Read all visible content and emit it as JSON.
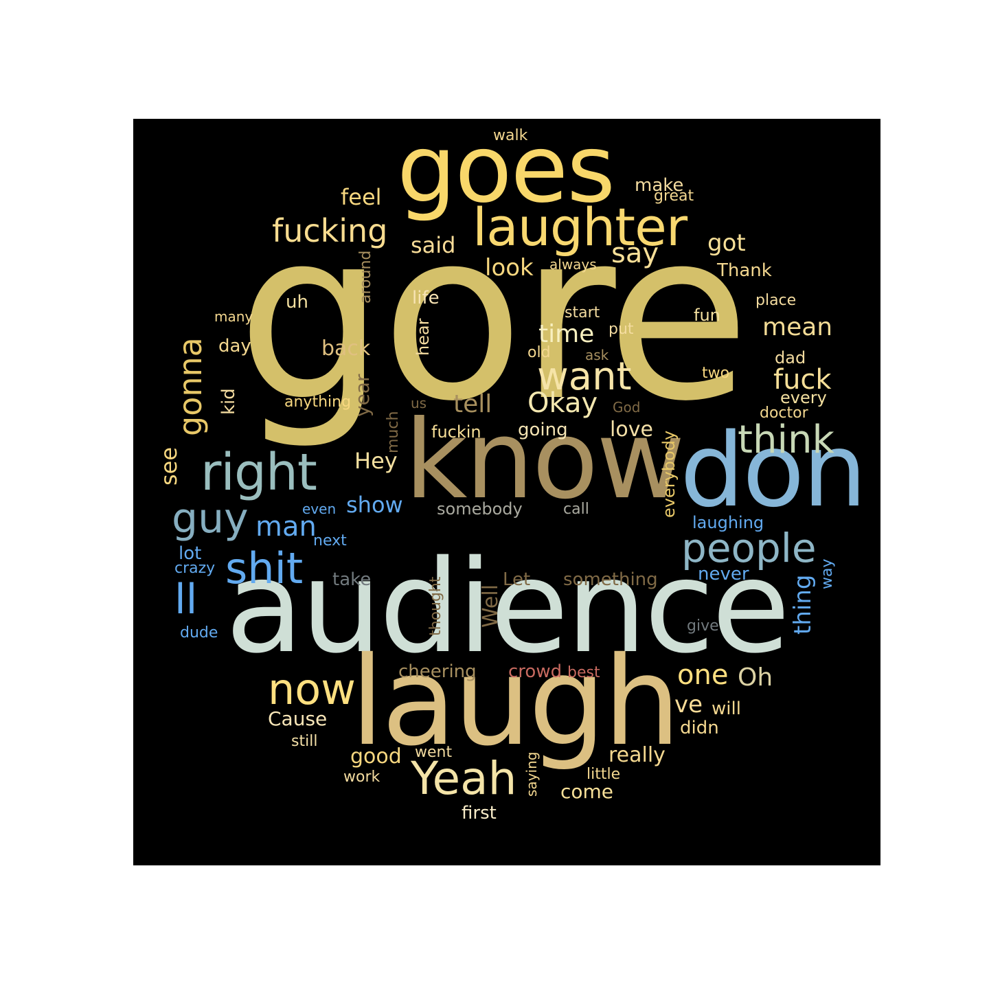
{
  "words": [
    {
      "text": "gore",
      "color": "#d4c06a"
    },
    {
      "text": "audience",
      "color": "#cfdfd6"
    },
    {
      "text": "know",
      "color": "#a89060"
    },
    {
      "text": "laugh",
      "color": "#dcc082"
    },
    {
      "text": "goes",
      "color": "#f8d76a"
    },
    {
      "text": "don",
      "color": "#86b6d8"
    },
    {
      "text": "laughter",
      "color": "#f8d870"
    },
    {
      "text": "right",
      "color": "#9abebe"
    },
    {
      "text": "Yeah",
      "color": "#f4e4a8"
    },
    {
      "text": "people",
      "color": "#8eb6c6"
    },
    {
      "text": "shit",
      "color": "#62aaf0"
    },
    {
      "text": "think",
      "color": "#c8d8b6"
    },
    {
      "text": "want",
      "color": "#f6e4a8"
    },
    {
      "text": "now",
      "color": "#ffe080"
    },
    {
      "text": "fucking",
      "color": "#f8dc90"
    },
    {
      "text": "guy",
      "color": "#86aec0"
    },
    {
      "text": "gonna",
      "color": "#e8c868"
    },
    {
      "text": "ll",
      "color": "#62aaf0"
    },
    {
      "text": "Okay",
      "color": "#f4e8b0"
    },
    {
      "text": "man",
      "color": "#62aaf0"
    },
    {
      "text": "fuck",
      "color": "#f8e098"
    },
    {
      "text": "say",
      "color": "#f8e098"
    },
    {
      "text": "one",
      "color": "#ffe080"
    },
    {
      "text": "time",
      "color": "#f8f0c0"
    },
    {
      "text": "mean",
      "color": "#f4dc96"
    },
    {
      "text": "look",
      "color": "#f8d880"
    },
    {
      "text": "got",
      "color": "#f8e098"
    },
    {
      "text": "Oh",
      "color": "#dcd2a4"
    },
    {
      "text": "tell",
      "color": "#a8905e"
    },
    {
      "text": "Hey",
      "color": "#f4e0a0"
    },
    {
      "text": "thing",
      "color": "#62aaf0"
    },
    {
      "text": "feel",
      "color": "#f8d880"
    },
    {
      "text": "said",
      "color": "#f8dc98"
    },
    {
      "text": "ve",
      "color": "#f8dc98"
    },
    {
      "text": "show",
      "color": "#62aaf0"
    },
    {
      "text": "Well",
      "color": "#806a46"
    },
    {
      "text": "back",
      "color": "#e0c080"
    },
    {
      "text": "love",
      "color": "#f4e0a8"
    },
    {
      "text": "see",
      "color": "#f8d880"
    },
    {
      "text": "Cause",
      "color": "#f8e6b8"
    },
    {
      "text": "really",
      "color": "#f4d890"
    },
    {
      "text": "come",
      "color": "#f8e098"
    },
    {
      "text": "good",
      "color": "#f8d880"
    },
    {
      "text": "cheering",
      "color": "#a89060"
    },
    {
      "text": "make",
      "color": "#f4dca0"
    },
    {
      "text": "Thank",
      "color": "#f4d890"
    },
    {
      "text": "life",
      "color": "#f8e4b4"
    },
    {
      "text": "crowd",
      "color": "#c86a60"
    },
    {
      "text": "year",
      "color": "#806a46"
    },
    {
      "text": "day",
      "color": "#f4d890"
    },
    {
      "text": "everybody",
      "color": "#e8c868"
    },
    {
      "text": "Let",
      "color": "#806a46"
    },
    {
      "text": "something",
      "color": "#806a46"
    },
    {
      "text": "somebody",
      "color": "#aaaaa0"
    },
    {
      "text": "going",
      "color": "#f4e4b4"
    },
    {
      "text": "fuckin",
      "color": "#f8e098"
    },
    {
      "text": "laughing",
      "color": "#62aaf0"
    },
    {
      "text": "uh",
      "color": "#f4e0a0"
    },
    {
      "text": "kid",
      "color": "#f4dca0"
    },
    {
      "text": "hear",
      "color": "#f4dca0"
    },
    {
      "text": "people_",
      "color": "#000000"
    },
    {
      "text": "dad",
      "color": "#f4dca0"
    },
    {
      "text": "take",
      "color": "#727a7e"
    },
    {
      "text": "never",
      "color": "#62aaf0"
    },
    {
      "text": "didn",
      "color": "#f4d890"
    },
    {
      "text": "will",
      "color": "#f4d890"
    },
    {
      "text": "first",
      "color": "#f8ecc8"
    },
    {
      "text": "lot",
      "color": "#62aaf0"
    },
    {
      "text": "fun",
      "color": "#f4e0a0"
    },
    {
      "text": "every",
      "color": "#f4e0a0"
    },
    {
      "text": "way",
      "color": "#62aaf0"
    },
    {
      "text": "place",
      "color": "#f4dca0"
    },
    {
      "text": "much",
      "color": "#806a46"
    },
    {
      "text": "around",
      "color": "#a89060"
    },
    {
      "text": "anything",
      "color": "#f8d880"
    },
    {
      "text": "two",
      "color": "#f8d880"
    },
    {
      "text": "doctor",
      "color": "#f4d890"
    },
    {
      "text": "great",
      "color": "#f4d890"
    },
    {
      "text": "put",
      "color": "#f4dca0"
    },
    {
      "text": "saying",
      "color": "#f4d890"
    },
    {
      "text": "call",
      "color": "#aaaaa0"
    },
    {
      "text": "many",
      "color": "#f4d890"
    },
    {
      "text": "start",
      "color": "#f4dca0"
    },
    {
      "text": "work",
      "color": "#f4dca0"
    },
    {
      "text": "crazy",
      "color": "#62aaf0"
    },
    {
      "text": "next",
      "color": "#62aaf0"
    },
    {
      "text": "give",
      "color": "#727a7e"
    },
    {
      "text": "still",
      "color": "#f4e0a8"
    },
    {
      "text": "went",
      "color": "#f4dca0"
    },
    {
      "text": "best",
      "color": "#c86a60"
    },
    {
      "text": "always",
      "color": "#f4d890"
    },
    {
      "text": "little",
      "color": "#f4d890"
    },
    {
      "text": "old",
      "color": "#f4d890"
    },
    {
      "text": "ask",
      "color": "#a89060"
    },
    {
      "text": "God",
      "color": "#806a46"
    },
    {
      "text": "walk",
      "color": "#f4d890"
    },
    {
      "text": "even",
      "color": "#62aaf0"
    },
    {
      "text": "thought",
      "color": "#806a46"
    },
    {
      "text": "us",
      "color": "#806a46"
    },
    {
      "text": "dude",
      "color": "#62aaf0"
    }
  ]
}
